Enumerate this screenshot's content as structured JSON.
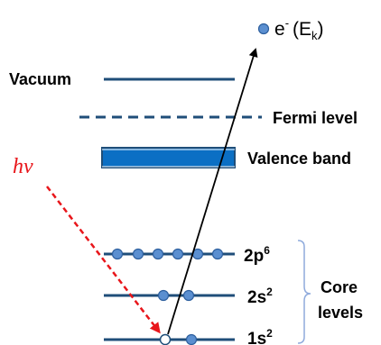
{
  "colors": {
    "level_line": "#1f4e79",
    "valence_fill": "#0b6fc4",
    "electron_fill": "#5b8fd0",
    "electron_stroke": "#2d5f9e",
    "hole_fill": "#ffffff",
    "photon_arrow": "#e8161b",
    "electron_arrow": "#000000",
    "bracket": "#8faadc"
  },
  "photon_label": "hν",
  "ejected_electron": {
    "symbol": "e",
    "superscript": "-",
    "energy_open": "(E",
    "energy_sub": "k",
    "energy_close": ")"
  },
  "levels": {
    "vacuum": "Vacuum",
    "fermi": "Fermi level",
    "valence": "Valence band",
    "core_2p": {
      "base": "2p",
      "sup": "6",
      "electrons": 6
    },
    "core_2s": {
      "base": "2s",
      "sup": "2",
      "electrons": 2
    },
    "core_1s": {
      "base": "1s",
      "sup": "2",
      "electrons": 1,
      "holes": 1
    }
  },
  "core_levels_label": [
    "Core",
    "levels"
  ]
}
